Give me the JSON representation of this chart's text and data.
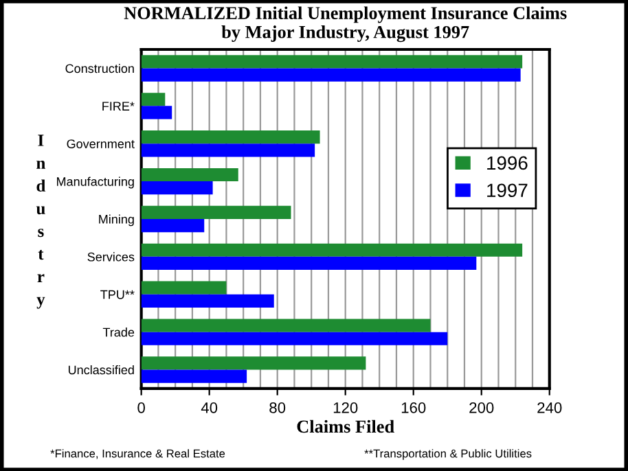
{
  "chart_data": {
    "type": "bar",
    "orientation": "horizontal",
    "title": "NORMALIZED Initial Unemployment Insurance Claims\nby Major Industry, August 1997",
    "xlabel": "Claims Filed",
    "ylabel": "Industry",
    "categories": [
      "Construction",
      "FIRE*",
      "Government",
      "Manufacturing",
      "Mining",
      "Services",
      "TPU**",
      "Trade",
      "Unclassified"
    ],
    "series": [
      {
        "name": "1996",
        "color": "#1e8c32",
        "values": [
          224,
          14,
          105,
          57,
          88,
          224,
          50,
          170,
          132
        ]
      },
      {
        "name": "1997",
        "color": "#0000ff",
        "values": [
          223,
          18,
          102,
          42,
          37,
          197,
          78,
          180,
          62
        ]
      }
    ],
    "xlim": [
      0,
      240
    ],
    "xticks": [
      0,
      40,
      80,
      120,
      160,
      200,
      240
    ],
    "grid": "x",
    "legend": "right",
    "annotations": [
      "*Finance, Insurance & Real Estate",
      "**Transportation & Public Utilities"
    ]
  }
}
